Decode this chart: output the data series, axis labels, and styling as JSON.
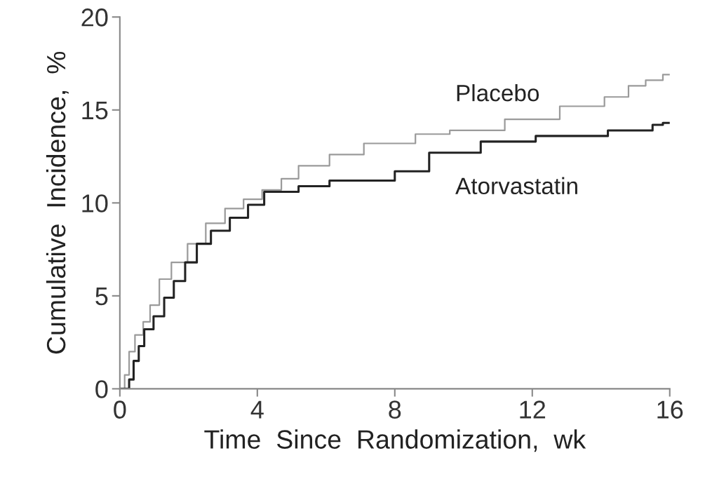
{
  "chart_data": {
    "type": "step",
    "xlabel": "Time  Since  Randomization,  wk",
    "ylabel": "Cumulative  Incidence,  %",
    "xlim": [
      0,
      16
    ],
    "ylim": [
      0,
      20
    ],
    "xticks": [
      0,
      4,
      8,
      12,
      16
    ],
    "yticks": [
      0,
      5,
      10,
      15,
      20
    ],
    "grid": false,
    "series": [
      {
        "name": "Placebo",
        "color": "#9a9a9a",
        "x": [
          0,
          0.14,
          0.27,
          0.44,
          0.68,
          0.88,
          1.15,
          1.5,
          1.97,
          2.5,
          3.06,
          3.6,
          4.14,
          4.7,
          5.2,
          6.1,
          7.1,
          8.6,
          9.6,
          11.2,
          12.8,
          14.1,
          14.8,
          15.3,
          15.8,
          16
        ],
        "values": [
          0,
          0.75,
          2.0,
          2.9,
          3.6,
          4.5,
          5.9,
          6.8,
          7.8,
          8.9,
          9.7,
          10.2,
          10.7,
          11.3,
          12.0,
          12.6,
          13.2,
          13.7,
          13.9,
          14.5,
          15.2,
          15.7,
          16.3,
          16.6,
          16.9,
          16.9
        ]
      },
      {
        "name": "Atorvastatin",
        "color": "#222222",
        "x": [
          0,
          0.27,
          0.4,
          0.55,
          0.71,
          0.98,
          1.29,
          1.57,
          1.9,
          2.24,
          2.65,
          3.2,
          3.73,
          4.2,
          5.2,
          6.1,
          8.0,
          9.0,
          10.5,
          12.1,
          14.2,
          15.5,
          15.8,
          16
        ],
        "values": [
          0,
          0.5,
          1.5,
          2.3,
          3.2,
          3.9,
          4.9,
          5.8,
          6.8,
          7.8,
          8.5,
          9.2,
          9.9,
          10.6,
          10.9,
          11.2,
          11.7,
          12.7,
          13.3,
          13.6,
          13.9,
          14.2,
          14.3,
          14.3
        ]
      }
    ]
  }
}
